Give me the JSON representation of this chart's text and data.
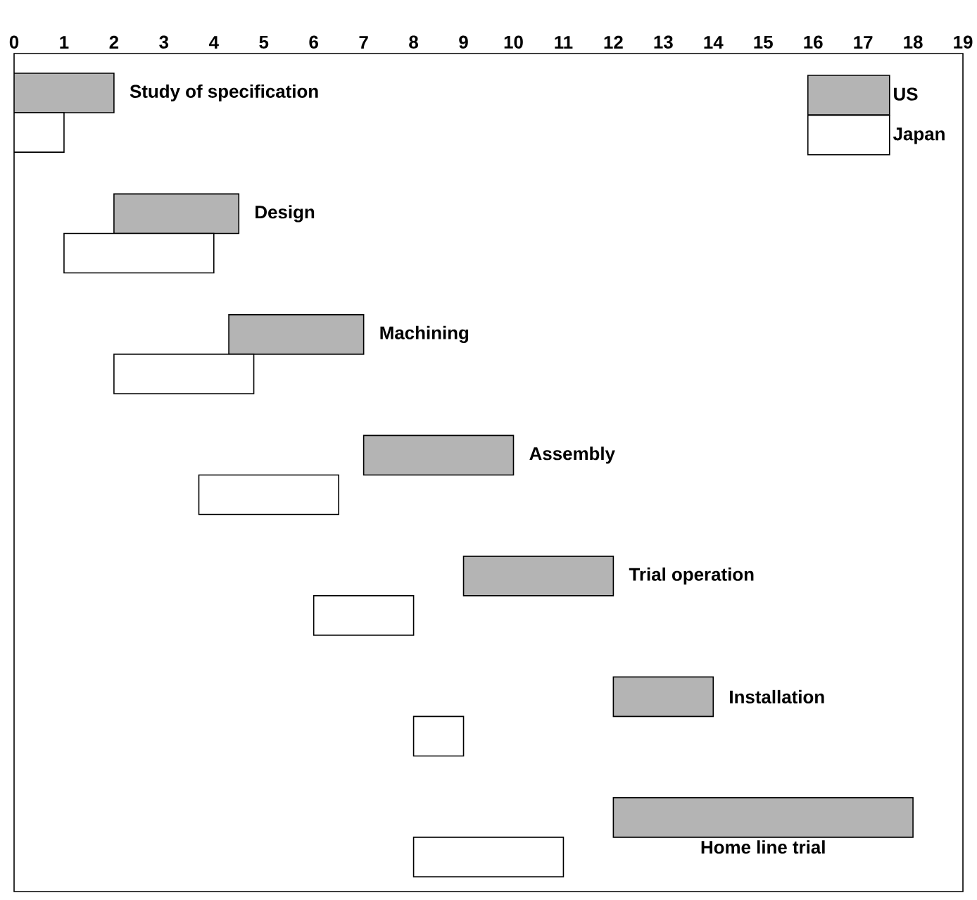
{
  "chart_data": {
    "type": "bar",
    "orientation": "horizontal",
    "categories": [
      "Study of specification",
      "Design",
      "Machining",
      "Assembly",
      "Trial operation",
      "Installation",
      "Home line trial"
    ],
    "series": [
      {
        "name": "US",
        "color": "#b4b4b4",
        "base": [
          0,
          2,
          4.3,
          7,
          9,
          12,
          12
        ],
        "values": [
          2,
          2.5,
          2.7,
          3,
          3,
          2,
          6
        ]
      },
      {
        "name": "Japan",
        "color": "#ffffff",
        "base": [
          0,
          1,
          2,
          3.7,
          6,
          8,
          8
        ],
        "values": [
          1,
          3,
          2.8,
          2.8,
          2,
          1,
          3
        ]
      }
    ],
    "xlim": [
      0,
      19
    ],
    "xticks": [
      0,
      1,
      2,
      3,
      4,
      5,
      6,
      7,
      8,
      9,
      10,
      11,
      12,
      13,
      14,
      15,
      16,
      17,
      18,
      19
    ],
    "grid": false,
    "legend": "top right"
  }
}
